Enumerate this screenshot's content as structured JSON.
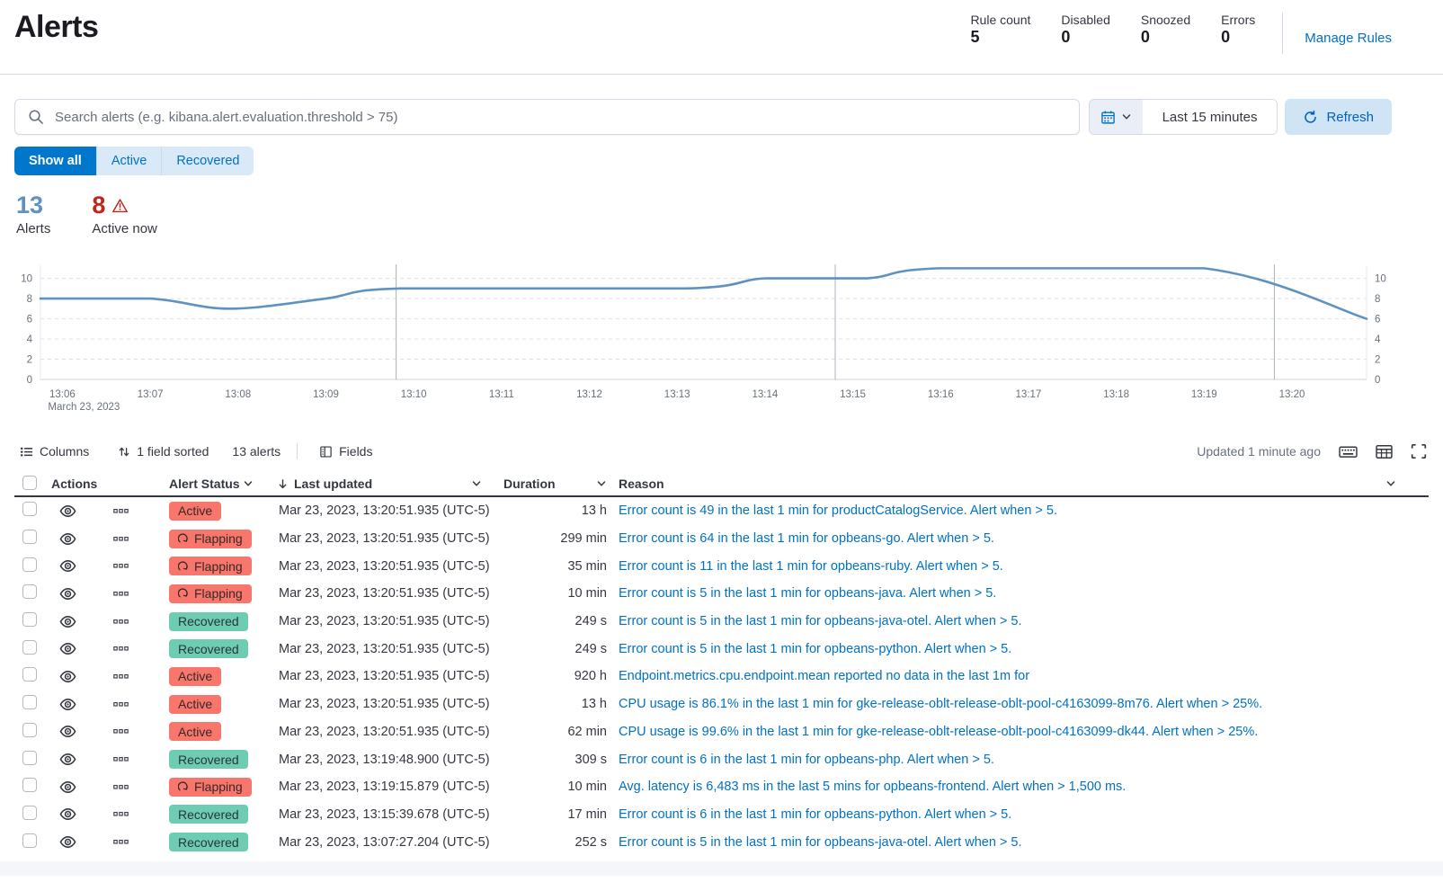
{
  "header": {
    "title": "Alerts",
    "stats": [
      {
        "label": "Rule count",
        "value": "5"
      },
      {
        "label": "Disabled",
        "value": "0"
      },
      {
        "label": "Snoozed",
        "value": "0"
      },
      {
        "label": "Errors",
        "value": "0"
      }
    ],
    "manage_rules_label": "Manage Rules"
  },
  "search": {
    "placeholder": "Search alerts (e.g. kibana.alert.evaluation.threshold > 75)"
  },
  "timepicker": {
    "range_label": "Last 15 minutes",
    "refresh_label": "Refresh"
  },
  "filters": {
    "options": [
      {
        "label": "Show all",
        "selected": true
      },
      {
        "label": "Active",
        "selected": false
      },
      {
        "label": "Recovered",
        "selected": false
      }
    ]
  },
  "summary": {
    "total": {
      "value": "13",
      "label": "Alerts"
    },
    "active": {
      "value": "8",
      "label": "Active now"
    }
  },
  "chart_data": {
    "type": "line",
    "title": "",
    "x": [
      "13:06",
      "13:07",
      "13:08",
      "13:09",
      "13:10",
      "13:11",
      "13:12",
      "13:13",
      "13:14",
      "13:15",
      "13:16",
      "13:17",
      "13:18",
      "13:19",
      "13:20"
    ],
    "x_axis_note": "March 23, 2023",
    "values": [
      8,
      8,
      7,
      8,
      9,
      9,
      9,
      9,
      10,
      10,
      11,
      11,
      11,
      11,
      8
    ],
    "end_value": 6,
    "ylim": [
      0,
      11
    ],
    "yticks": [
      0,
      2,
      4,
      6,
      8,
      10
    ],
    "grid": true,
    "legend": "none",
    "line_color": "#6092c0",
    "plot": {
      "points": [
        [
          -0.25,
          8
        ],
        [
          1,
          8
        ],
        [
          1.9,
          7
        ],
        [
          3,
          8
        ],
        [
          3.85,
          9
        ],
        [
          7.1,
          9
        ],
        [
          8,
          10
        ],
        [
          9.15,
          10
        ],
        [
          10,
          11
        ],
        [
          13,
          11
        ],
        [
          14.85,
          6
        ]
      ],
      "vlines": [
        3.8,
        8.8,
        13.8
      ],
      "xdomain": [
        -0.25,
        14.85
      ],
      "ymax": 11.3
    }
  },
  "toolbar": {
    "columns_label": "Columns",
    "sorted_label": "1 field sorted",
    "alerts_count_label": "13 alerts",
    "fields_label": "Fields",
    "updated_label": "Updated 1 minute ago"
  },
  "table": {
    "columns": {
      "actions": "Actions",
      "status": "Alert Status",
      "updated": "Last updated",
      "duration": "Duration",
      "reason": "Reason"
    },
    "rows": [
      {
        "status": "Active",
        "updated": "Mar 23, 2023, 13:20:51.935 (UTC-5)",
        "duration": "13 h",
        "reason": "Error count is 49 in the last 1 min for productCatalogService. Alert when > 5."
      },
      {
        "status": "Flapping",
        "updated": "Mar 23, 2023, 13:20:51.935 (UTC-5)",
        "duration": "299 min",
        "reason": "Error count is 64 in the last 1 min for opbeans-go. Alert when > 5."
      },
      {
        "status": "Flapping",
        "updated": "Mar 23, 2023, 13:20:51.935 (UTC-5)",
        "duration": "35 min",
        "reason": "Error count is 11 in the last 1 min for opbeans-ruby. Alert when > 5."
      },
      {
        "status": "Flapping",
        "updated": "Mar 23, 2023, 13:20:51.935 (UTC-5)",
        "duration": "10 min",
        "reason": "Error count is 5 in the last 1 min for opbeans-java. Alert when > 5."
      },
      {
        "status": "Recovered",
        "updated": "Mar 23, 2023, 13:20:51.935 (UTC-5)",
        "duration": "249 s",
        "reason": "Error count is 5 in the last 1 min for opbeans-java-otel. Alert when > 5."
      },
      {
        "status": "Recovered",
        "updated": "Mar 23, 2023, 13:20:51.935 (UTC-5)",
        "duration": "249 s",
        "reason": "Error count is 5 in the last 1 min for opbeans-python. Alert when > 5."
      },
      {
        "status": "Active",
        "updated": "Mar 23, 2023, 13:20:51.935 (UTC-5)",
        "duration": "920 h",
        "reason": "Endpoint.metrics.cpu.endpoint.mean reported no data in the last 1m for"
      },
      {
        "status": "Active",
        "updated": "Mar 23, 2023, 13:20:51.935 (UTC-5)",
        "duration": "13 h",
        "reason": "CPU usage is 86.1% in the last 1 min for gke-release-oblt-release-oblt-pool-c4163099-8m76. Alert when > 25%."
      },
      {
        "status": "Active",
        "updated": "Mar 23, 2023, 13:20:51.935 (UTC-5)",
        "duration": "62 min",
        "reason": "CPU usage is 99.6% in the last 1 min for gke-release-oblt-release-oblt-pool-c4163099-dk44. Alert when > 25%."
      },
      {
        "status": "Recovered",
        "updated": "Mar 23, 2023, 13:19:48.900 (UTC-5)",
        "duration": "309 s",
        "reason": "Error count is 6 in the last 1 min for opbeans-php. Alert when > 5."
      },
      {
        "status": "Flapping",
        "updated": "Mar 23, 2023, 13:19:15.879 (UTC-5)",
        "duration": "10 min",
        "reason": "Avg. latency is 6,483 ms in the last 5 mins for opbeans-frontend. Alert when > 1,500 ms."
      },
      {
        "status": "Recovered",
        "updated": "Mar 23, 2023, 13:15:39.678 (UTC-5)",
        "duration": "17 min",
        "reason": "Error count is 6 in the last 1 min for opbeans-python. Alert when > 5."
      },
      {
        "status": "Recovered",
        "updated": "Mar 23, 2023, 13:07:27.204 (UTC-5)",
        "duration": "252 s",
        "reason": "Error count is 5 in the last 1 min for opbeans-java-otel. Alert when > 5."
      }
    ]
  },
  "colors": {
    "primary": "#0077cc",
    "link": "#0071c3",
    "danger": "#bd271e",
    "badge_active_bg": "#f9766c",
    "badge_recovered_bg": "#6dccb1",
    "chart_line": "#6092c0",
    "border": "#d3dae6",
    "text": "#343741",
    "text_subdued": "#69707d"
  }
}
